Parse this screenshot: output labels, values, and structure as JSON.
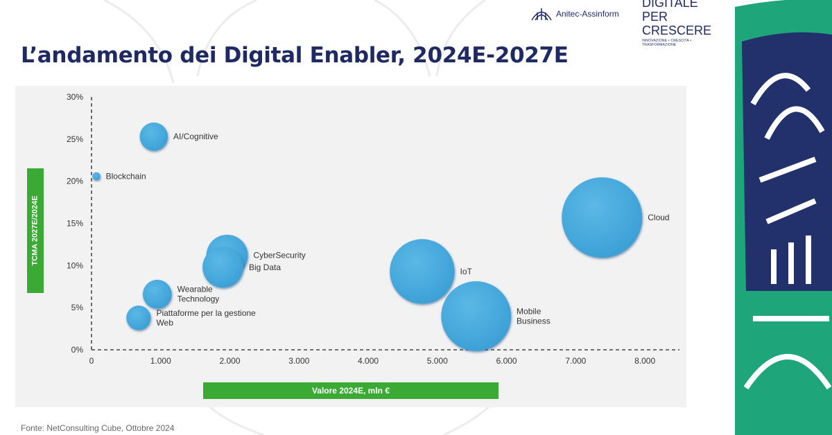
{
  "header": {
    "logo_anitec": "Anitec-Assinform",
    "logo_dpc_line1": "DIGITALE",
    "logo_dpc_line2": "PER CRESCERE",
    "logo_dpc_tagline": "INNOVAZIONE • CRESCITA • TRASFORMAZIONE"
  },
  "title": "L’andamento dei Digital Enabler, 2024E-2027E",
  "source": "Fonte: NetConsulting Cube, Ottobre 2024",
  "colors": {
    "title": "#1f2a63",
    "bubble": "#41a8dc",
    "label_box": "#3aaa35",
    "panel": "#f2f2f2"
  },
  "chart_data": {
    "type": "scatter",
    "xlabel": "Valore 2024E, mln €",
    "ylabel": "TCMA 2027E/2024E",
    "xlim": [
      0,
      8500
    ],
    "ylim": [
      0,
      30
    ],
    "x_ticks": [
      "0",
      "1.000",
      "2.000",
      "3.000",
      "4.000",
      "5.000",
      "6.000",
      "7.000",
      "8.000"
    ],
    "y_ticks": [
      "0%",
      "5%",
      "10%",
      "15%",
      "20%",
      "25%",
      "30%"
    ],
    "grid": false,
    "points": [
      {
        "name": "AI/Cognitive",
        "x": 900,
        "y": 25.3,
        "size": 900
      },
      {
        "name": "Blockchain",
        "x": 70,
        "y": 20.6,
        "size": 70
      },
      {
        "name": "CyberSecurity",
        "x": 1960,
        "y": 11.2,
        "size": 1960
      },
      {
        "name": "Big Data",
        "x": 1900,
        "y": 9.8,
        "size": 1900
      },
      {
        "name": "Wearable Technology",
        "x": 950,
        "y": 6.6,
        "size": 950
      },
      {
        "name": "Piattaforme per la gestione Web",
        "x": 680,
        "y": 3.8,
        "size": 680
      },
      {
        "name": "IoT",
        "x": 4780,
        "y": 9.3,
        "size": 4780
      },
      {
        "name": "Mobile Business",
        "x": 5560,
        "y": 4.0,
        "size": 5560
      },
      {
        "name": "Cloud",
        "x": 7380,
        "y": 15.7,
        "size": 7380
      }
    ]
  }
}
